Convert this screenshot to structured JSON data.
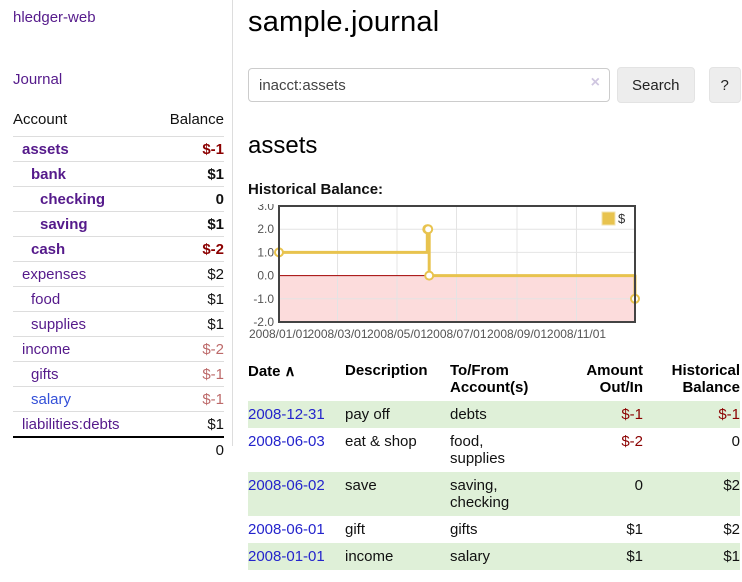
{
  "sidebar": {
    "app_title": "hledger-web",
    "journal_link": "Journal",
    "accounts": {
      "header_account": "Account",
      "header_balance": "Balance",
      "rows": [
        {
          "name": "assets",
          "amount": "$-1"
        },
        {
          "name": "bank",
          "amount": "$1"
        },
        {
          "name": "checking",
          "amount": "0"
        },
        {
          "name": "saving",
          "amount": "$1"
        },
        {
          "name": "cash",
          "amount": "$-2"
        },
        {
          "name": "expenses",
          "amount": "$2"
        },
        {
          "name": "food",
          "amount": "$1"
        },
        {
          "name": "supplies",
          "amount": "$1"
        },
        {
          "name": "income",
          "amount": "$-2"
        },
        {
          "name": "gifts",
          "amount": "$-1"
        },
        {
          "name": "salary",
          "amount": "$-1"
        },
        {
          "name": "liabilities:debts",
          "amount": "$1"
        }
      ],
      "total": "0"
    }
  },
  "main": {
    "title": "sample.journal",
    "search": {
      "value": "inacct:assets",
      "clear_icon": "×",
      "search_button": "Search",
      "help_button": "?"
    },
    "account_heading": "assets",
    "chart_title": "Historical Balance:"
  },
  "register": {
    "headers": {
      "date": "Date",
      "sort_icon": "∧",
      "description": "Description",
      "account": "To/From Account(s)",
      "amount": "Amount Out/In",
      "balance": "Historical Balance"
    },
    "rows": [
      {
        "date": "2008-12-31",
        "description": "pay off",
        "account": "debts",
        "amount": "$-1",
        "balance": "$-1"
      },
      {
        "date": "2008-06-03",
        "description": "eat & shop",
        "account": "food, supplies",
        "amount": "$-2",
        "balance": "0"
      },
      {
        "date": "2008-06-02",
        "description": "save",
        "account": "saving, checking",
        "amount": "0",
        "balance": "$2"
      },
      {
        "date": "2008-06-01",
        "description": "gift",
        "account": "gifts",
        "amount": "$1",
        "balance": "$2"
      },
      {
        "date": "2008-01-01",
        "description": "income",
        "account": "salary",
        "amount": "$1",
        "balance": "$1"
      }
    ]
  },
  "chart_data": {
    "type": "line",
    "step": true,
    "title": "Historical Balance",
    "series": [
      {
        "name": "$",
        "color": "#e8c34e",
        "points": [
          [
            "2008-01-01",
            1
          ],
          [
            "2008-06-01",
            2
          ],
          [
            "2008-06-02",
            2
          ],
          [
            "2008-06-03",
            0
          ],
          [
            "2008-12-31",
            -1
          ]
        ]
      }
    ],
    "ylim": [
      -2,
      3
    ],
    "yticks": [
      3,
      2,
      1,
      0,
      -1,
      -2
    ],
    "xticks": [
      {
        "date": "2008-01-01",
        "label": "2008/01/01"
      },
      {
        "date": "2008-03-01",
        "label": "2008/03/01"
      },
      {
        "date": "2008-05-01",
        "label": "2008/05/01"
      },
      {
        "date": "2008-07-01",
        "label": "2008/07/01"
      },
      {
        "date": "2008-09-01",
        "label": "2008/09/01"
      },
      {
        "date": "2008-11-01",
        "label": "2008/11/01"
      }
    ],
    "xrange": [
      "2008-01-01",
      "2008-12-31"
    ],
    "grid": true,
    "legend_position": "top-right",
    "legend_label": "$",
    "negative_region_color": "#fcdcdc",
    "zero_line_color": "#a40000",
    "grid_color": "#e4e4e4",
    "border_color": "#434343",
    "tick_text_color": "#545454"
  },
  "colors": {
    "link_purple": "#551a8b",
    "link_blue": "#3450d8",
    "date_link_blue": "#2424cc",
    "negative_dark": "#8b0000",
    "negative_soft": "#bd6a6a",
    "row_green": "#dff0d8",
    "series_gold": "#e8c34e"
  }
}
